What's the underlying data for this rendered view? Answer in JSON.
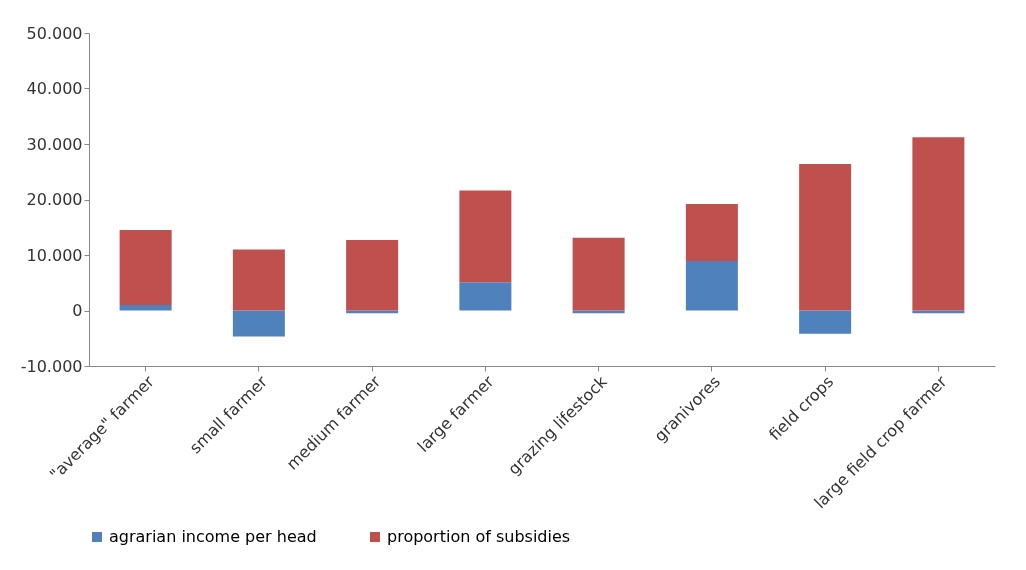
{
  "chart_data": {
    "type": "bar",
    "stacked": true,
    "categories": [
      "\"average\" farmer",
      "small farmer",
      "medium farmer",
      "large farmer",
      "grazing lifestock",
      "granivores",
      "field crops",
      "large field crop farmer"
    ],
    "series": [
      {
        "name": "agrarian income per head",
        "color": "#4f81bd",
        "values": [
          1000,
          -4700,
          -500,
          5100,
          -500,
          8900,
          -4200,
          -500
        ]
      },
      {
        "name": "proportion of subsidies",
        "color": "#c0504d",
        "values": [
          13500,
          11000,
          12700,
          16500,
          13100,
          10300,
          26400,
          31200
        ]
      }
    ],
    "ylim": [
      -10000,
      50000
    ],
    "yticks": [
      {
        "value": -10000,
        "label": "-10.000"
      },
      0,
      {
        "value": 10000,
        "label": "10.000"
      },
      {
        "value": 20000,
        "label": "20.000"
      },
      {
        "value": 30000,
        "label": "30.000"
      },
      {
        "value": 40000,
        "label": "40.000"
      },
      {
        "value": 50000,
        "label": "50.000"
      }
    ],
    "grid": false,
    "legend": "bottom"
  }
}
